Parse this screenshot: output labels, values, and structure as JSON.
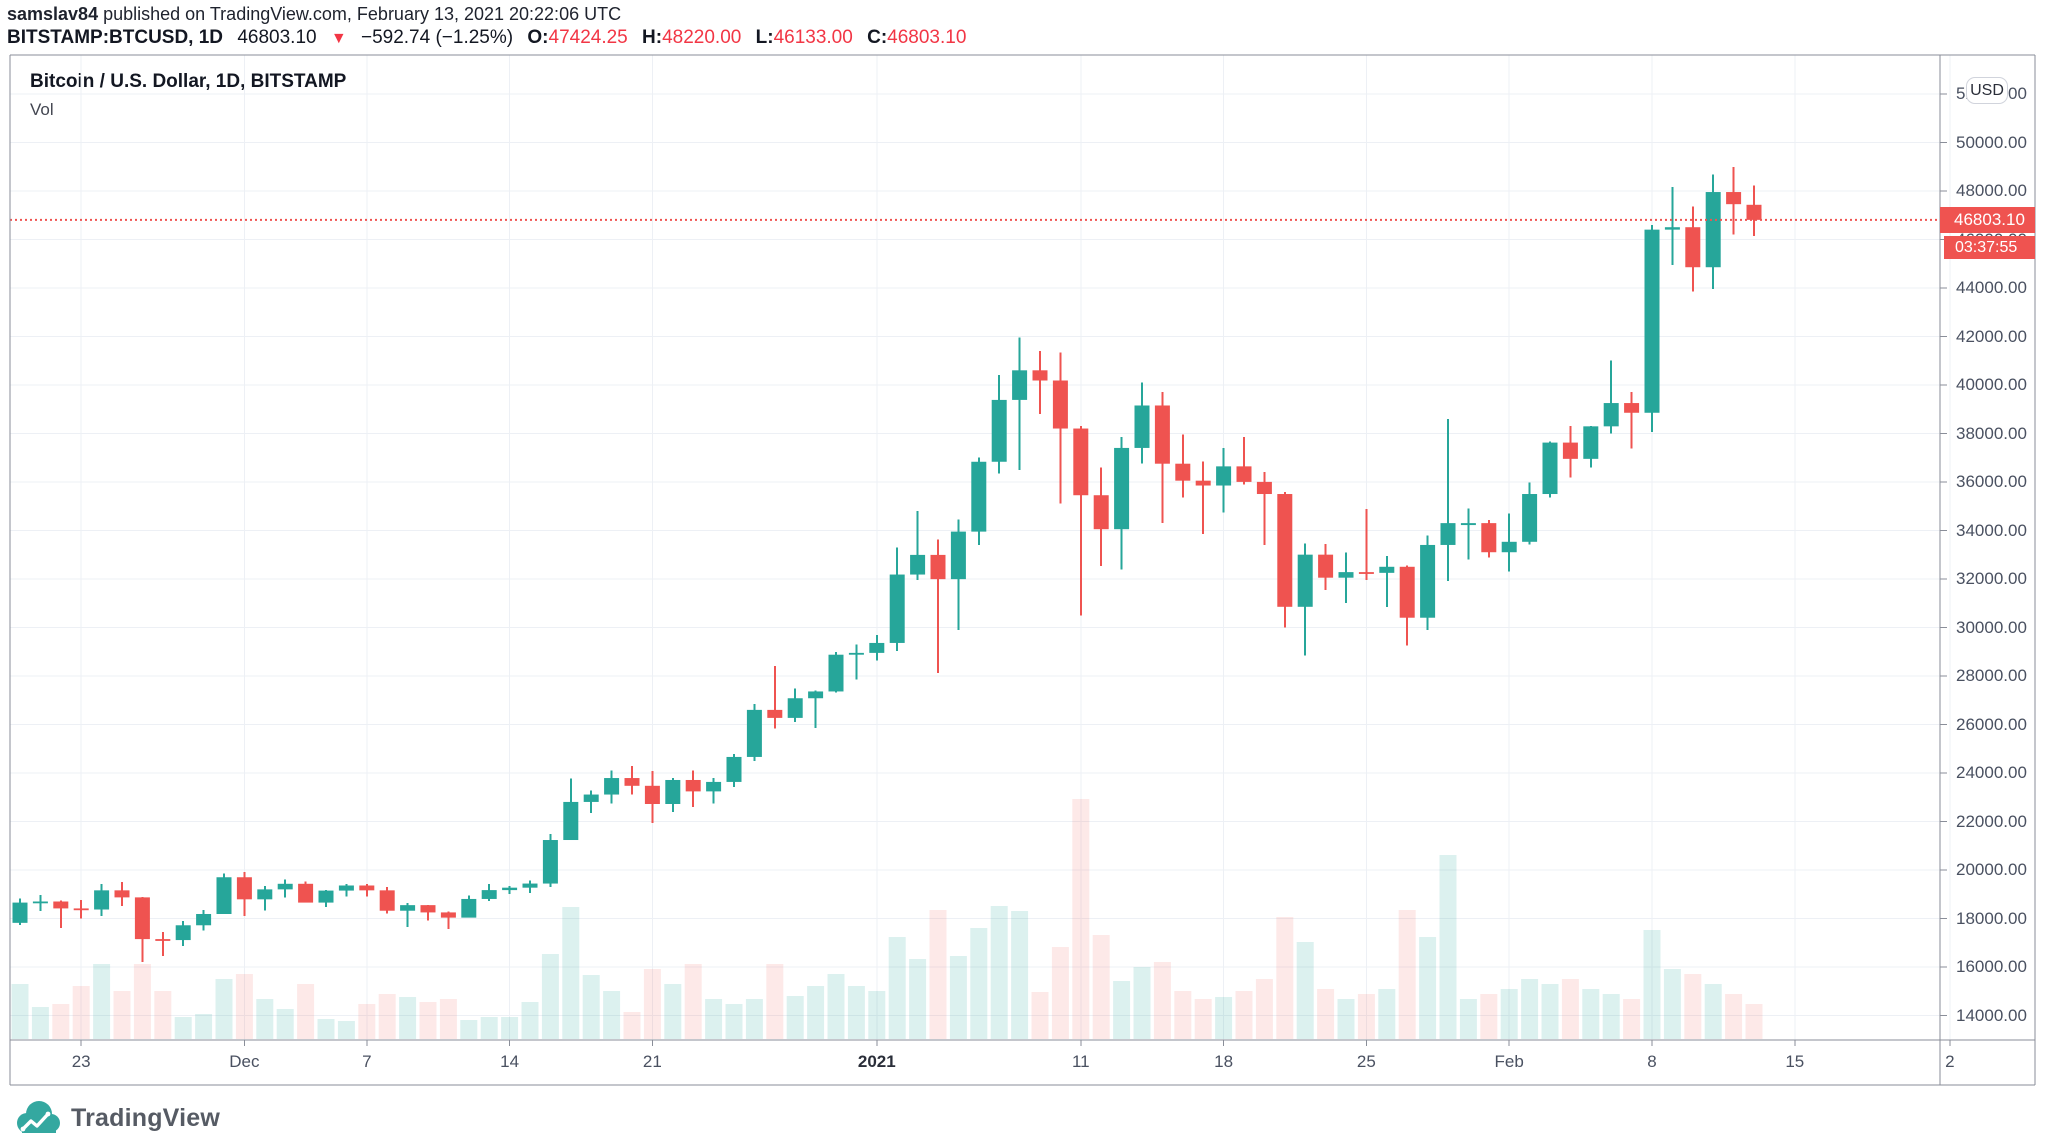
{
  "header": {
    "author": "samslav84",
    "published": " published on TradingView.com, February 13, 2021 20:22:06 UTC",
    "symbol": "BITSTAMP:BTCUSD, 1D",
    "last_price": "46803.10",
    "direction_icon": "▼",
    "change": "−592.74 (−1.25%)",
    "o_label": "O:",
    "o_value": "47424.25",
    "h_label": "H:",
    "h_value": "48220.00",
    "l_label": "L:",
    "l_value": "46133.00",
    "c_label": "C:",
    "c_value": "46803.10"
  },
  "chart": {
    "title": "Bitcoin / U.S. Dollar, 1D, BITSTAMP",
    "indicator_label": "Vol",
    "currency_button": "USD",
    "price_badge": "46803.10",
    "countdown_badge": "03:37:55"
  },
  "logo": {
    "text": "TradingView"
  },
  "colors": {
    "up": "#26a69a",
    "down": "#ef5350",
    "vol_up": "rgba(38,166,154,0.16)",
    "vol_down": "rgba(239,83,80,0.13)",
    "grid": "#edf0f5",
    "border": "#8a8e99",
    "price_line": "#ef5350",
    "axis_text": "#4a5161",
    "badge_bg": "#ef5350"
  },
  "chart_data": {
    "type": "candlestick+volume",
    "title": "Bitcoin / U.S. Dollar, 1D, BITSTAMP",
    "exchange": "BITSTAMP",
    "symbol": "BTCUSD",
    "timeframe": "1D",
    "current_price": 46803.1,
    "countdown": "03:37:55",
    "legend_position": "top-left",
    "grid": true,
    "price_axis": {
      "min": 12990,
      "max": 53600,
      "tick_start": 14000,
      "tick_step": 2000,
      "tick_end": 52000
    },
    "x_ticks": [
      [
        3,
        "23"
      ],
      [
        11,
        "Dec"
      ],
      [
        17,
        "7"
      ],
      [
        24,
        "14"
      ],
      [
        31,
        "21"
      ],
      [
        42,
        "2021"
      ],
      [
        52,
        "11"
      ],
      [
        59,
        "18"
      ],
      [
        66,
        "25"
      ],
      [
        73,
        "Feb"
      ],
      [
        80,
        "8"
      ],
      [
        87,
        "15"
      ],
      [
        94.6,
        "2"
      ]
    ],
    "candles_note": "each row = [date, open, high, low, close, volume_bar_height_px_estimated]",
    "candles": [
      [
        "Nov 20",
        17820,
        18815,
        17740,
        18655,
        55
      ],
      [
        "Nov 21",
        18655,
        18965,
        18310,
        18700,
        32
      ],
      [
        "Nov 22",
        18700,
        18750,
        17610,
        18415,
        35
      ],
      [
        "Nov 23",
        18415,
        18770,
        18000,
        18370,
        53
      ],
      [
        "Nov 24",
        18370,
        19420,
        18105,
        19160,
        75
      ],
      [
        "Nov 25",
        19160,
        19500,
        18510,
        18870,
        48
      ],
      [
        "Nov 26",
        18870,
        18890,
        16200,
        17150,
        75
      ],
      [
        "Nov 27",
        17150,
        17450,
        16460,
        17110,
        48
      ],
      [
        "Nov 28",
        17110,
        17900,
        16870,
        17720,
        22
      ],
      [
        "Nov 29",
        17720,
        18350,
        17500,
        18185,
        25
      ],
      [
        "Nov 30",
        18185,
        19850,
        18185,
        19700,
        60
      ],
      [
        "Dec 1",
        19700,
        19915,
        18100,
        18790,
        65
      ],
      [
        "Dec 2",
        18790,
        19330,
        18330,
        19200,
        40
      ],
      [
        "Dec 3",
        19200,
        19600,
        18865,
        19430,
        30
      ],
      [
        "Dec 4",
        19430,
        19530,
        18650,
        18655,
        55
      ],
      [
        "Dec 5",
        18655,
        19175,
        18480,
        19150,
        20
      ],
      [
        "Dec 6",
        19150,
        19420,
        18900,
        19360,
        18
      ],
      [
        "Dec 7",
        19360,
        19420,
        18905,
        19160,
        35
      ],
      [
        "Dec 8",
        19160,
        19290,
        18200,
        18320,
        45
      ],
      [
        "Dec 9",
        18320,
        18640,
        17650,
        18550,
        42
      ],
      [
        "Dec 10",
        18550,
        18560,
        17920,
        18250,
        37
      ],
      [
        "Dec 11",
        18250,
        18290,
        17570,
        18035,
        40
      ],
      [
        "Dec 12",
        18035,
        18950,
        18035,
        18805,
        19
      ],
      [
        "Dec 13",
        18805,
        19420,
        18715,
        19170,
        22
      ],
      [
        "Dec 14",
        19170,
        19340,
        19000,
        19270,
        22
      ],
      [
        "Dec 15",
        19270,
        19570,
        19060,
        19440,
        37
      ],
      [
        "Dec 16",
        19440,
        21480,
        19300,
        21235,
        85
      ],
      [
        "Dec 17",
        21235,
        23775,
        21235,
        22805,
        132
      ],
      [
        "Dec 18",
        22805,
        23285,
        22350,
        23110,
        64
      ],
      [
        "Dec 19",
        23110,
        24100,
        22750,
        23790,
        48
      ],
      [
        "Dec 20",
        23790,
        24280,
        23120,
        23470,
        27
      ],
      [
        "Dec 21",
        23470,
        24085,
        21935,
        22720,
        70
      ],
      [
        "Dec 22",
        22720,
        23800,
        22390,
        23710,
        55
      ],
      [
        "Dec 23",
        23710,
        24100,
        22600,
        23240,
        75
      ],
      [
        "Dec 24",
        23240,
        23790,
        22750,
        23630,
        40
      ],
      [
        "Dec 25",
        23630,
        24790,
        23430,
        24660,
        35
      ],
      [
        "Dec 26",
        24660,
        26850,
        24500,
        26600,
        40
      ],
      [
        "Dec 27",
        26600,
        28400,
        25830,
        26270,
        75
      ],
      [
        "Dec 28",
        26270,
        27480,
        26100,
        27080,
        43
      ],
      [
        "Dec 29",
        27080,
        27400,
        25850,
        27360,
        53
      ],
      [
        "Dec 30",
        27360,
        28990,
        27320,
        28875,
        65
      ],
      [
        "Dec 31",
        28875,
        29300,
        27850,
        28950,
        53
      ],
      [
        "Jan 1",
        28950,
        29680,
        28640,
        29360,
        48
      ],
      [
        "Jan 2",
        29360,
        33300,
        29030,
        32180,
        102
      ],
      [
        "Jan 3",
        32180,
        34800,
        31960,
        32990,
        80
      ],
      [
        "Jan 4",
        32990,
        33620,
        28130,
        31990,
        129
      ],
      [
        "Jan 5",
        31990,
        34440,
        29890,
        33950,
        83
      ],
      [
        "Jan 6",
        33950,
        37000,
        33390,
        36830,
        111
      ],
      [
        "Jan 7",
        36830,
        40400,
        36350,
        39380,
        133
      ],
      [
        "Jan 8",
        39380,
        41950,
        36500,
        40600,
        128
      ],
      [
        "Jan 9",
        40600,
        41400,
        38800,
        40180,
        47
      ],
      [
        "Jan 10",
        40180,
        41340,
        35100,
        38200,
        92
      ],
      [
        "Jan 11",
        38200,
        38300,
        30500,
        35450,
        240
      ],
      [
        "Jan 12",
        35450,
        36600,
        32540,
        34050,
        104
      ],
      [
        "Jan 13",
        34050,
        37850,
        32380,
        37400,
        58
      ],
      [
        "Jan 14",
        37400,
        40100,
        36750,
        39150,
        72
      ],
      [
        "Jan 15",
        39150,
        39700,
        34300,
        36750,
        77
      ],
      [
        "Jan 16",
        36750,
        37950,
        35350,
        36050,
        48
      ],
      [
        "Jan 17",
        36050,
        36850,
        33850,
        35850,
        40
      ],
      [
        "Jan 18",
        35850,
        37400,
        34740,
        36640,
        42
      ],
      [
        "Jan 19",
        36640,
        37850,
        35900,
        36000,
        48
      ],
      [
        "Jan 20",
        36000,
        36400,
        33400,
        35500,
        60
      ],
      [
        "Jan 21",
        35500,
        35590,
        30000,
        30850,
        122
      ],
      [
        "Jan 22",
        30850,
        33450,
        28850,
        33000,
        97
      ],
      [
        "Jan 23",
        33000,
        33440,
        31550,
        32050,
        50
      ],
      [
        "Jan 24",
        32050,
        33080,
        31000,
        32280,
        40
      ],
      [
        "Jan 25",
        32280,
        34875,
        31950,
        32250,
        45
      ],
      [
        "Jan 26",
        32250,
        32950,
        30840,
        32500,
        50
      ],
      [
        "Jan 27",
        32500,
        32550,
        29250,
        30400,
        129
      ],
      [
        "Jan 28",
        30400,
        33800,
        29900,
        33400,
        102
      ],
      [
        "Jan 29",
        33400,
        38600,
        31915,
        34300,
        184
      ],
      [
        "Jan 30",
        34220,
        34900,
        32800,
        34300,
        40
      ],
      [
        "Jan 31",
        34300,
        34420,
        32880,
        33100,
        45
      ],
      [
        "Feb 1",
        33100,
        34700,
        32300,
        33530,
        50
      ],
      [
        "Feb 2",
        33530,
        35985,
        33420,
        35500,
        60
      ],
      [
        "Feb 3",
        35500,
        37660,
        35350,
        37620,
        55
      ],
      [
        "Feb 4",
        37620,
        38310,
        36180,
        36950,
        60
      ],
      [
        "Feb 5",
        36950,
        38310,
        36600,
        38290,
        50
      ],
      [
        "Feb 6",
        38290,
        41000,
        38000,
        39250,
        45
      ],
      [
        "Feb 7",
        39250,
        39700,
        37380,
        38850,
        40
      ],
      [
        "Feb 8",
        38850,
        46600,
        38050,
        46400,
        109
      ],
      [
        "Feb 9",
        46400,
        48150,
        44950,
        46500,
        70
      ],
      [
        "Feb 10",
        46500,
        47350,
        43850,
        44850,
        65
      ],
      [
        "Feb 11",
        44850,
        48680,
        43950,
        47950,
        55
      ],
      [
        "Feb 12",
        47950,
        48985,
        46200,
        47450,
        45
      ],
      [
        "Feb 13",
        47424.25,
        48220,
        46133,
        46803.1,
        35
      ]
    ]
  }
}
